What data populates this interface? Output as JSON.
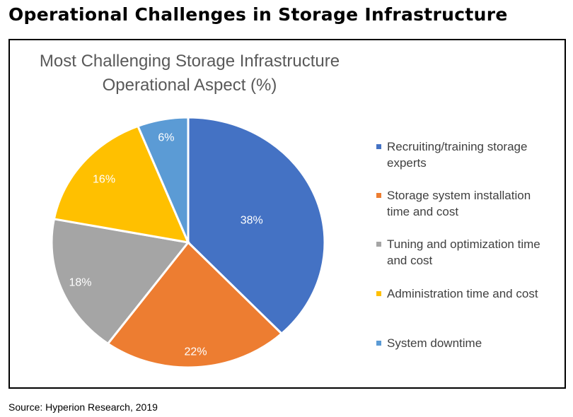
{
  "page_title": "Operational Challenges in Storage Infrastructure",
  "source": "Source: Hyperion Research, 2019",
  "chart_data": {
    "type": "pie",
    "title_lines": [
      "Most Challenging Storage Infrastructure",
      "Operational Aspect (%)"
    ],
    "legend_position": "right",
    "slices": [
      {
        "label": "Recruiting/training storage experts",
        "value": 38,
        "data_label": "38%",
        "color": "#4472C4"
      },
      {
        "label": "Storage system installation time and cost",
        "value": 22,
        "data_label": "22%",
        "color": "#ED7D31"
      },
      {
        "label": "Tuning and optimization time and cost",
        "value": 18,
        "data_label": "18%",
        "color": "#A5A5A5"
      },
      {
        "label": "Administration time and cost",
        "value": 16,
        "data_label": "16%",
        "color": "#FFC000"
      },
      {
        "label": "System downtime",
        "value": 6,
        "data_label": "6%",
        "color": "#5B9BD5"
      }
    ]
  }
}
